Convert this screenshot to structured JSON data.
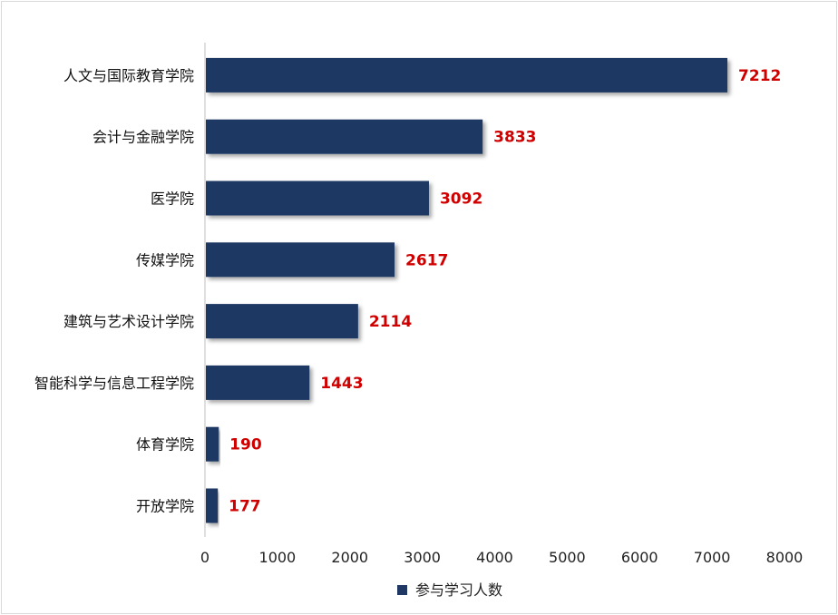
{
  "chart_data": {
    "type": "bar",
    "orientation": "horizontal",
    "categories": [
      "人文与国际教育学院",
      "会计与金融学院",
      "医学院",
      "传媒学院",
      "建筑与艺术设计学院",
      "智能科学与信息工程学院",
      "体育学院",
      "开放学院"
    ],
    "series": [
      {
        "name": "参与学习人数",
        "values": [
          7212,
          3833,
          3092,
          2617,
          2114,
          1443,
          190,
          177
        ]
      }
    ],
    "data_labels": [
      "7212",
      "3833",
      "3092",
      "2617",
      "2114",
      "1443",
      "190",
      "177"
    ],
    "x_ticks": [
      "0",
      "1000",
      "2000",
      "3000",
      "4000",
      "5000",
      "6000",
      "7000",
      "8000"
    ],
    "xlim": [
      0,
      8000
    ],
    "grid": false,
    "legend": "bottom",
    "colors": {
      "bar": "#1f3864",
      "value_label": "#d00000"
    }
  }
}
